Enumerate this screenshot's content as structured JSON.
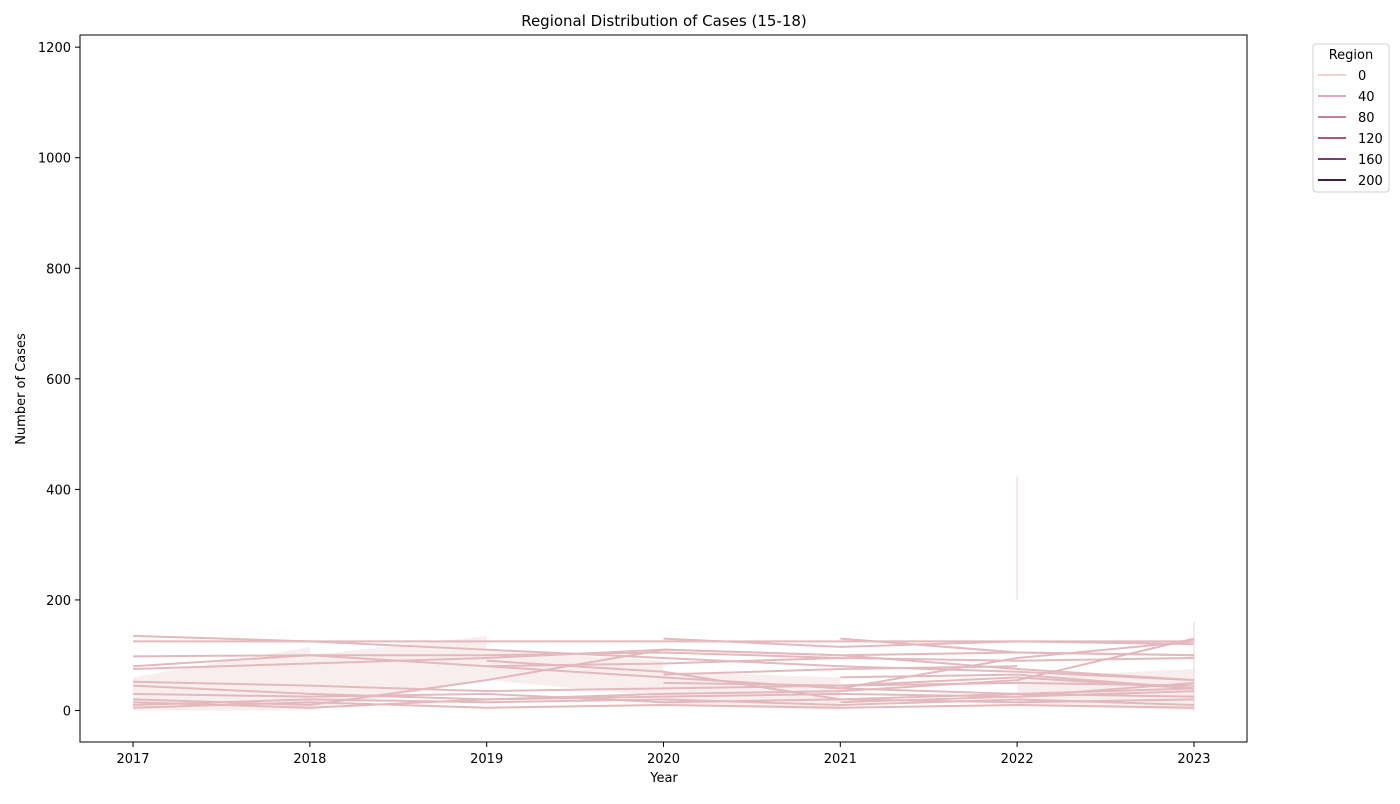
{
  "chart_data": {
    "type": "line",
    "title": "Regional Distribution of Cases (15-18)",
    "xlabel": "Year",
    "ylabel": "Number of Cases",
    "xlim": [
      2016.7,
      2023.3
    ],
    "ylim": [
      -57,
      1222
    ],
    "x_ticks": [
      "2017",
      "2018",
      "2019",
      "2020",
      "2021",
      "2022",
      "2023"
    ],
    "y_ticks": [
      "0",
      "200",
      "400",
      "600",
      "800",
      "1000",
      "1200"
    ],
    "grid": false,
    "legend": {
      "title": "Region",
      "placement": "outside-top-right",
      "entries": [
        {
          "label": "0",
          "color": "#eed3cf"
        },
        {
          "label": "40",
          "color": "#e0a9b3"
        },
        {
          "label": "80",
          "color": "#c97d98"
        },
        {
          "label": "120",
          "color": "#a75a88"
        },
        {
          "label": "160",
          "color": "#7b3a74"
        },
        {
          "label": "200",
          "color": "#3f1d4b"
        }
      ]
    },
    "line_color": "#e3b9bd",
    "band_color": "#f5e2e2",
    "series": [
      {
        "x": [
          2017,
          2018,
          2019,
          2020,
          2021,
          2022,
          2023
        ],
        "y": [
          135,
          125,
          125,
          125,
          125,
          125,
          125
        ]
      },
      {
        "x": [
          2017,
          2018,
          2019,
          2020,
          2021,
          2022,
          2023
        ],
        "y": [
          125,
          125,
          110,
          95,
          80,
          70,
          55
        ]
      },
      {
        "x": [
          2017,
          2018,
          2019,
          2020,
          2021,
          2022,
          2023
        ],
        "y": [
          98,
          100,
          100,
          105,
          95,
          90,
          95
        ]
      },
      {
        "x": [
          2017,
          2018,
          2019,
          2020,
          2021,
          2022,
          2023
        ],
        "y": [
          80,
          100,
          80,
          60,
          40,
          30,
          25
        ]
      },
      {
        "x": [
          2017,
          2018,
          2019,
          2020,
          2021,
          2022,
          2023
        ],
        "y": [
          75,
          85,
          95,
          110,
          100,
          105,
          100
        ]
      },
      {
        "x": [
          2017,
          2018,
          2019,
          2020,
          2021,
          2022,
          2023
        ],
        "y": [
          52,
          45,
          35,
          40,
          45,
          50,
          45
        ]
      },
      {
        "x": [
          2017,
          2018,
          2019,
          2020,
          2021,
          2022,
          2023
        ],
        "y": [
          45,
          30,
          20,
          25,
          30,
          25,
          35
        ]
      },
      {
        "x": [
          2017,
          2018,
          2019,
          2020,
          2021,
          2022,
          2023
        ],
        "y": [
          20,
          10,
          55,
          110,
          100,
          75,
          55
        ]
      },
      {
        "x": [
          2017,
          2018,
          2019,
          2020,
          2021,
          2022,
          2023
        ],
        "y": [
          15,
          5,
          20,
          30,
          35,
          55,
          130
        ]
      },
      {
        "x": [
          2017,
          2018,
          2019,
          2020,
          2021,
          2022,
          2023
        ],
        "y": [
          10,
          20,
          15,
          20,
          10,
          20,
          10
        ]
      },
      {
        "x": [
          2017,
          2018,
          2019,
          2020,
          2021,
          2022,
          2023
        ],
        "y": [
          5,
          15,
          5,
          10,
          5,
          10,
          5
        ]
      },
      {
        "x": [
          2017,
          2018,
          2019,
          2020,
          2021,
          2022,
          2023
        ],
        "y": [
          30,
          25,
          30,
          15,
          20,
          15,
          20
        ]
      },
      {
        "x": [
          2019,
          2020,
          2021,
          2022,
          2023
        ],
        "y": [
          90,
          70,
          20,
          30,
          40
        ]
      },
      {
        "x": [
          2019,
          2020,
          2021
        ],
        "y": [
          80,
          85,
          95
        ]
      },
      {
        "x": [
          2020,
          2021,
          2022,
          2023
        ],
        "y": [
          130,
          115,
          125,
          120
        ]
      },
      {
        "x": [
          2020,
          2021,
          2022
        ],
        "y": [
          65,
          75,
          80
        ]
      },
      {
        "x": [
          2020,
          2021,
          2022,
          2023
        ],
        "y": [
          50,
          45,
          60,
          40
        ]
      },
      {
        "x": [
          2021,
          2022,
          2023
        ],
        "y": [
          130,
          105,
          100
        ]
      },
      {
        "x": [
          2021,
          2022,
          2023
        ],
        "y": [
          60,
          65,
          40
        ]
      },
      {
        "x": [
          2021,
          2022,
          2023
        ],
        "y": [
          15,
          25,
          50
        ]
      },
      {
        "x": [
          2021,
          2022,
          2023
        ],
        "y": [
          40,
          95,
          125
        ]
      }
    ],
    "bands": [
      {
        "x": [
          2017,
          2018
        ],
        "y_low": [
          0,
          0
        ],
        "y_high": [
          60,
          115
        ]
      },
      {
        "x": [
          2018,
          2019
        ],
        "y_low": [
          0,
          55
        ],
        "y_high": [
          100,
          135
        ]
      },
      {
        "x": [
          2019,
          2020
        ],
        "y_low": [
          55,
          25
        ],
        "y_high": [
          110,
          90
        ]
      },
      {
        "x": [
          2020,
          2021
        ],
        "y_low": [
          10,
          0
        ],
        "y_high": [
          70,
          60
        ]
      },
      {
        "x": [
          2022,
          2023
        ],
        "y_low": [
          10,
          0
        ],
        "y_high": [
          60,
          75
        ]
      },
      {
        "x": [
          2022,
          2022
        ],
        "y_low": [
          200,
          200
        ],
        "y_high": [
          425,
          425
        ]
      },
      {
        "x": [
          2023,
          2023
        ],
        "y_low": [
          0,
          0
        ],
        "y_high": [
          160,
          160
        ]
      }
    ]
  }
}
